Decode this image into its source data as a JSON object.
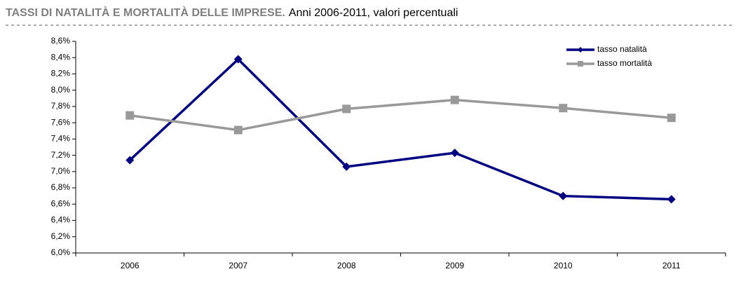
{
  "chart_data": {
    "type": "line",
    "title": "TASSI DI NATALITÀ E MORTALITÀ DELLE IMPRESE.",
    "subtitle": "Anni 2006-2011, valori percentuali",
    "categories": [
      "2006",
      "2007",
      "2008",
      "2009",
      "2010",
      "2011"
    ],
    "series": [
      {
        "name": "tasso natalità",
        "color": "#000080",
        "marker": "diamond",
        "values": [
          7.14,
          8.38,
          7.06,
          7.23,
          6.7,
          6.66
        ]
      },
      {
        "name": "tasso mortalità",
        "color": "#999999",
        "marker": "square",
        "values": [
          7.69,
          7.51,
          7.77,
          7.88,
          7.78,
          7.66
        ]
      }
    ],
    "ylim": [
      6.0,
      8.6
    ],
    "yticks": [
      {
        "value": 6.0,
        "label": "6,0%"
      },
      {
        "value": 6.2,
        "label": "6,2%"
      },
      {
        "value": 6.4,
        "label": "6,4%"
      },
      {
        "value": 6.6,
        "label": "6,6%"
      },
      {
        "value": 6.8,
        "label": "6,8%"
      },
      {
        "value": 7.0,
        "label": "7,0%"
      },
      {
        "value": 7.2,
        "label": "7,2%"
      },
      {
        "value": 7.4,
        "label": "7,4%"
      },
      {
        "value": 7.6,
        "label": "7,6%"
      },
      {
        "value": 7.8,
        "label": "7,8%"
      },
      {
        "value": 8.0,
        "label": "8,0%"
      },
      {
        "value": 8.2,
        "label": "8,2%"
      },
      {
        "value": 8.4,
        "label": "8,4%"
      },
      {
        "value": 8.6,
        "label": "8,6%"
      }
    ],
    "grid": false,
    "legend": "top-right"
  }
}
